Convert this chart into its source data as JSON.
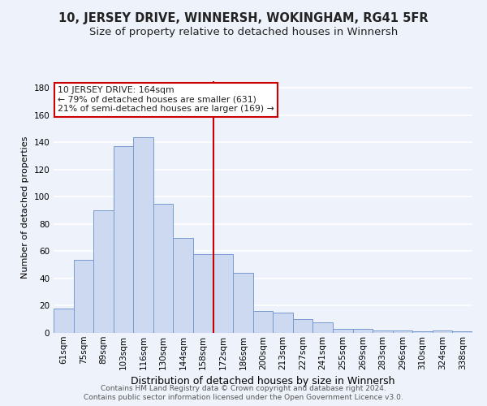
{
  "title": "10, JERSEY DRIVE, WINNERSH, WOKINGHAM, RG41 5FR",
  "subtitle": "Size of property relative to detached houses in Winnersh",
  "xlabel": "Distribution of detached houses by size in Winnersh",
  "ylabel": "Number of detached properties",
  "categories": [
    "61sqm",
    "75sqm",
    "89sqm",
    "103sqm",
    "116sqm",
    "130sqm",
    "144sqm",
    "158sqm",
    "172sqm",
    "186sqm",
    "200sqm",
    "213sqm",
    "227sqm",
    "241sqm",
    "255sqm",
    "269sqm",
    "283sqm",
    "296sqm",
    "310sqm",
    "324sqm",
    "338sqm"
  ],
  "values": [
    18,
    54,
    90,
    137,
    144,
    95,
    70,
    58,
    58,
    44,
    16,
    15,
    10,
    8,
    3,
    3,
    2,
    2,
    1,
    2,
    1
  ],
  "bar_color": "#ccd9f0",
  "bar_edge_color": "#7799cc",
  "vline_position": 7.5,
  "vline_color": "#cc0000",
  "annotation_text": "10 JERSEY DRIVE: 164sqm\n← 79% of detached houses are smaller (631)\n21% of semi-detached houses are larger (169) →",
  "annotation_box_color": "#ffffff",
  "annotation_box_edge": "#cc0000",
  "footer1": "Contains HM Land Registry data © Crown copyright and database right 2024.",
  "footer2": "Contains public sector information licensed under the Open Government Licence v3.0.",
  "ylim": [
    0,
    185
  ],
  "yticks": [
    0,
    20,
    40,
    60,
    80,
    100,
    120,
    140,
    160,
    180
  ],
  "bg_color": "#eef2fb",
  "grid_color": "#ffffff",
  "title_fontsize": 10.5,
  "subtitle_fontsize": 9.5,
  "ylabel_fontsize": 8,
  "xlabel_fontsize": 9,
  "tick_fontsize": 7.5,
  "footer_fontsize": 6.5
}
